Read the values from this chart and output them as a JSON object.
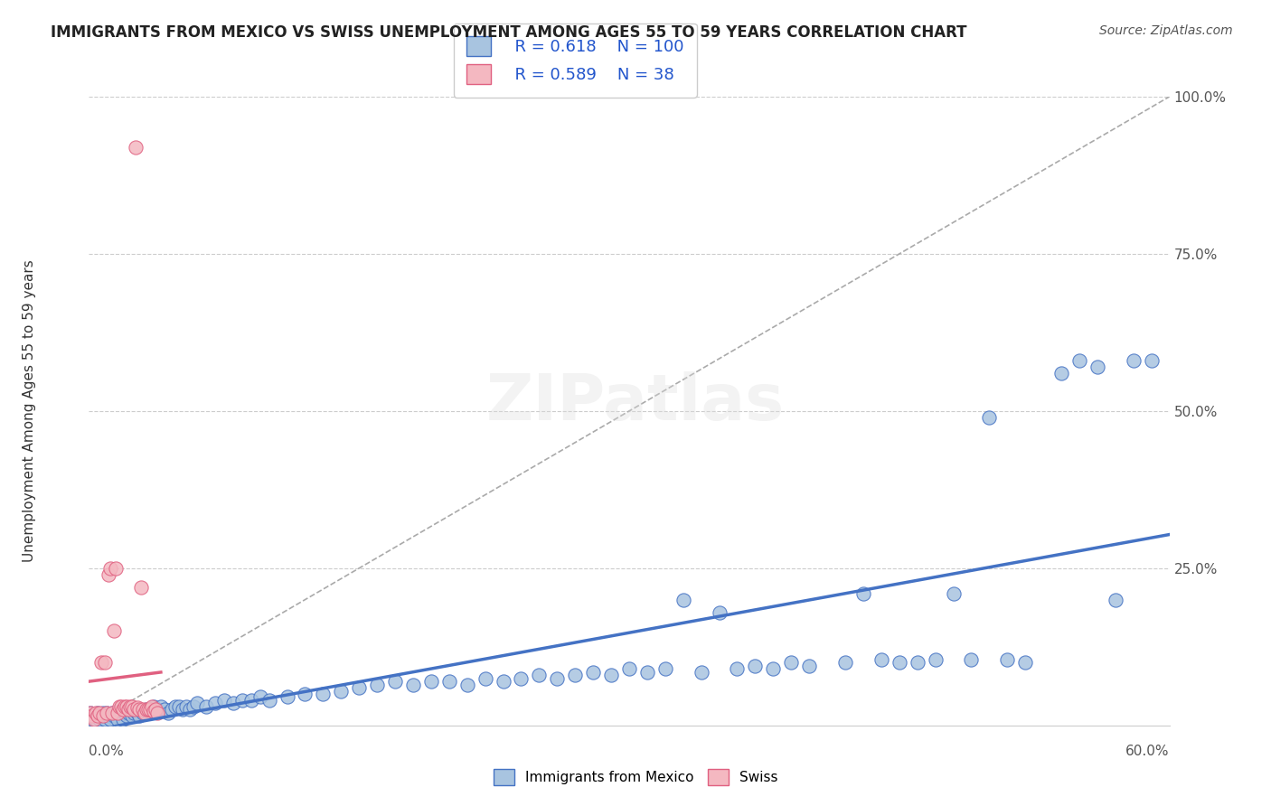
{
  "title": "IMMIGRANTS FROM MEXICO VS SWISS UNEMPLOYMENT AMONG AGES 55 TO 59 YEARS CORRELATION CHART",
  "source": "Source: ZipAtlas.com",
  "xlabel_bottom_left": "0.0%",
  "xlabel_bottom_right": "60.0%",
  "ylabel_label": "Unemployment Among Ages 55 to 59 years",
  "xlim": [
    0.0,
    0.6
  ],
  "ylim": [
    0.0,
    1.0
  ],
  "blue_R": 0.618,
  "blue_N": 100,
  "pink_R": 0.589,
  "pink_N": 38,
  "blue_color": "#a8c4e0",
  "blue_line_color": "#4472c4",
  "pink_color": "#f4b8c1",
  "pink_line_color": "#e06080",
  "blue_scatter": [
    [
      0.001,
      0.02
    ],
    [
      0.002,
      0.01
    ],
    [
      0.003,
      0.015
    ],
    [
      0.004,
      0.01
    ],
    [
      0.005,
      0.02
    ],
    [
      0.006,
      0.01
    ],
    [
      0.007,
      0.015
    ],
    [
      0.008,
      0.02
    ],
    [
      0.009,
      0.01
    ],
    [
      0.01,
      0.02
    ],
    [
      0.011,
      0.015
    ],
    [
      0.012,
      0.01
    ],
    [
      0.013,
      0.02
    ],
    [
      0.014,
      0.015
    ],
    [
      0.015,
      0.02
    ],
    [
      0.016,
      0.01
    ],
    [
      0.017,
      0.025
    ],
    [
      0.018,
      0.02
    ],
    [
      0.019,
      0.01
    ],
    [
      0.02,
      0.02
    ],
    [
      0.021,
      0.015
    ],
    [
      0.022,
      0.02
    ],
    [
      0.023,
      0.025
    ],
    [
      0.024,
      0.015
    ],
    [
      0.025,
      0.02
    ],
    [
      0.026,
      0.025
    ],
    [
      0.027,
      0.02
    ],
    [
      0.028,
      0.015
    ],
    [
      0.03,
      0.02
    ],
    [
      0.032,
      0.025
    ],
    [
      0.033,
      0.02
    ],
    [
      0.035,
      0.025
    ],
    [
      0.036,
      0.03
    ],
    [
      0.038,
      0.025
    ],
    [
      0.04,
      0.03
    ],
    [
      0.042,
      0.025
    ],
    [
      0.044,
      0.02
    ],
    [
      0.046,
      0.025
    ],
    [
      0.048,
      0.03
    ],
    [
      0.05,
      0.03
    ],
    [
      0.052,
      0.025
    ],
    [
      0.054,
      0.03
    ],
    [
      0.056,
      0.025
    ],
    [
      0.058,
      0.03
    ],
    [
      0.06,
      0.035
    ],
    [
      0.065,
      0.03
    ],
    [
      0.07,
      0.035
    ],
    [
      0.075,
      0.04
    ],
    [
      0.08,
      0.035
    ],
    [
      0.085,
      0.04
    ],
    [
      0.09,
      0.04
    ],
    [
      0.095,
      0.045
    ],
    [
      0.1,
      0.04
    ],
    [
      0.11,
      0.045
    ],
    [
      0.12,
      0.05
    ],
    [
      0.13,
      0.05
    ],
    [
      0.14,
      0.055
    ],
    [
      0.15,
      0.06
    ],
    [
      0.16,
      0.065
    ],
    [
      0.17,
      0.07
    ],
    [
      0.18,
      0.065
    ],
    [
      0.19,
      0.07
    ],
    [
      0.2,
      0.07
    ],
    [
      0.21,
      0.065
    ],
    [
      0.22,
      0.075
    ],
    [
      0.23,
      0.07
    ],
    [
      0.24,
      0.075
    ],
    [
      0.25,
      0.08
    ],
    [
      0.26,
      0.075
    ],
    [
      0.27,
      0.08
    ],
    [
      0.28,
      0.085
    ],
    [
      0.29,
      0.08
    ],
    [
      0.3,
      0.09
    ],
    [
      0.31,
      0.085
    ],
    [
      0.32,
      0.09
    ],
    [
      0.33,
      0.2
    ],
    [
      0.34,
      0.085
    ],
    [
      0.35,
      0.18
    ],
    [
      0.36,
      0.09
    ],
    [
      0.37,
      0.095
    ],
    [
      0.38,
      0.09
    ],
    [
      0.39,
      0.1
    ],
    [
      0.4,
      0.095
    ],
    [
      0.42,
      0.1
    ],
    [
      0.43,
      0.21
    ],
    [
      0.44,
      0.105
    ],
    [
      0.45,
      0.1
    ],
    [
      0.46,
      0.1
    ],
    [
      0.47,
      0.105
    ],
    [
      0.48,
      0.21
    ],
    [
      0.49,
      0.105
    ],
    [
      0.5,
      0.49
    ],
    [
      0.51,
      0.105
    ],
    [
      0.52,
      0.1
    ],
    [
      0.54,
      0.56
    ],
    [
      0.55,
      0.58
    ],
    [
      0.56,
      0.57
    ],
    [
      0.57,
      0.2
    ],
    [
      0.58,
      0.58
    ],
    [
      0.59,
      0.58
    ]
  ],
  "pink_scatter": [
    [
      0.001,
      0.02
    ],
    [
      0.002,
      0.015
    ],
    [
      0.003,
      0.01
    ],
    [
      0.004,
      0.02
    ],
    [
      0.005,
      0.015
    ],
    [
      0.006,
      0.02
    ],
    [
      0.007,
      0.1
    ],
    [
      0.008,
      0.015
    ],
    [
      0.009,
      0.1
    ],
    [
      0.01,
      0.02
    ],
    [
      0.011,
      0.24
    ],
    [
      0.012,
      0.25
    ],
    [
      0.013,
      0.02
    ],
    [
      0.014,
      0.15
    ],
    [
      0.015,
      0.25
    ],
    [
      0.016,
      0.02
    ],
    [
      0.017,
      0.03
    ],
    [
      0.018,
      0.03
    ],
    [
      0.019,
      0.025
    ],
    [
      0.02,
      0.03
    ],
    [
      0.021,
      0.03
    ],
    [
      0.022,
      0.025
    ],
    [
      0.023,
      0.03
    ],
    [
      0.024,
      0.03
    ],
    [
      0.025,
      0.025
    ],
    [
      0.026,
      0.92
    ],
    [
      0.027,
      0.028
    ],
    [
      0.028,
      0.025
    ],
    [
      0.029,
      0.22
    ],
    [
      0.03,
      0.025
    ],
    [
      0.031,
      0.02
    ],
    [
      0.032,
      0.025
    ],
    [
      0.033,
      0.025
    ],
    [
      0.034,
      0.025
    ],
    [
      0.035,
      0.03
    ],
    [
      0.036,
      0.022
    ],
    [
      0.037,
      0.025
    ],
    [
      0.038,
      0.02
    ]
  ]
}
